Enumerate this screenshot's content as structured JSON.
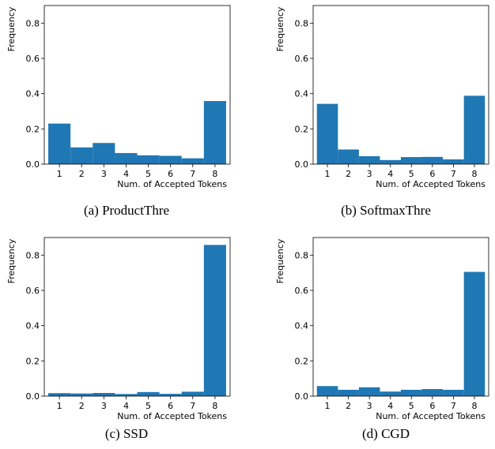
{
  "chart_data": [
    {
      "type": "bar",
      "caption": "(a) ProductThre",
      "xlabel": "Num. of Accepted Tokens",
      "ylabel": "Frequency",
      "categories": [
        "1",
        "2",
        "3",
        "4",
        "5",
        "6",
        "7",
        "8"
      ],
      "values": [
        0.23,
        0.095,
        0.12,
        0.063,
        0.05,
        0.047,
        0.033,
        0.358
      ],
      "ylim": [
        0,
        0.9
      ],
      "yticks": [
        "0.0",
        "0.2",
        "0.4",
        "0.6",
        "0.8"
      ],
      "color": "#1f77b4"
    },
    {
      "type": "bar",
      "caption": "(b) SoftmaxThre",
      "xlabel": "Num. of Accepted Tokens",
      "ylabel": "Frequency",
      "categories": [
        "1",
        "2",
        "3",
        "4",
        "5",
        "6",
        "7",
        "8"
      ],
      "values": [
        0.342,
        0.083,
        0.045,
        0.023,
        0.04,
        0.041,
        0.027,
        0.388
      ],
      "ylim": [
        0,
        0.9
      ],
      "yticks": [
        "0.0",
        "0.2",
        "0.4",
        "0.6",
        "0.8"
      ],
      "color": "#1f77b4"
    },
    {
      "type": "bar",
      "caption": "(c) SSD",
      "xlabel": "Num. of Accepted Tokens",
      "ylabel": "Frequency",
      "categories": [
        "1",
        "2",
        "3",
        "4",
        "5",
        "6",
        "7",
        "8"
      ],
      "values": [
        0.017,
        0.015,
        0.018,
        0.012,
        0.023,
        0.013,
        0.025,
        0.858
      ],
      "ylim": [
        0,
        0.9
      ],
      "yticks": [
        "0.0",
        "0.2",
        "0.4",
        "0.6",
        "0.8"
      ],
      "color": "#1f77b4"
    },
    {
      "type": "bar",
      "caption": "(d) CGD",
      "xlabel": "Num. of Accepted Tokens",
      "ylabel": "Frequency",
      "categories": [
        "1",
        "2",
        "3",
        "4",
        "5",
        "6",
        "7",
        "8"
      ],
      "values": [
        0.057,
        0.036,
        0.05,
        0.026,
        0.036,
        0.04,
        0.036,
        0.705
      ],
      "ylim": [
        0,
        0.9
      ],
      "yticks": [
        "0.0",
        "0.2",
        "0.4",
        "0.6",
        "0.8"
      ],
      "color": "#1f77b4"
    }
  ]
}
